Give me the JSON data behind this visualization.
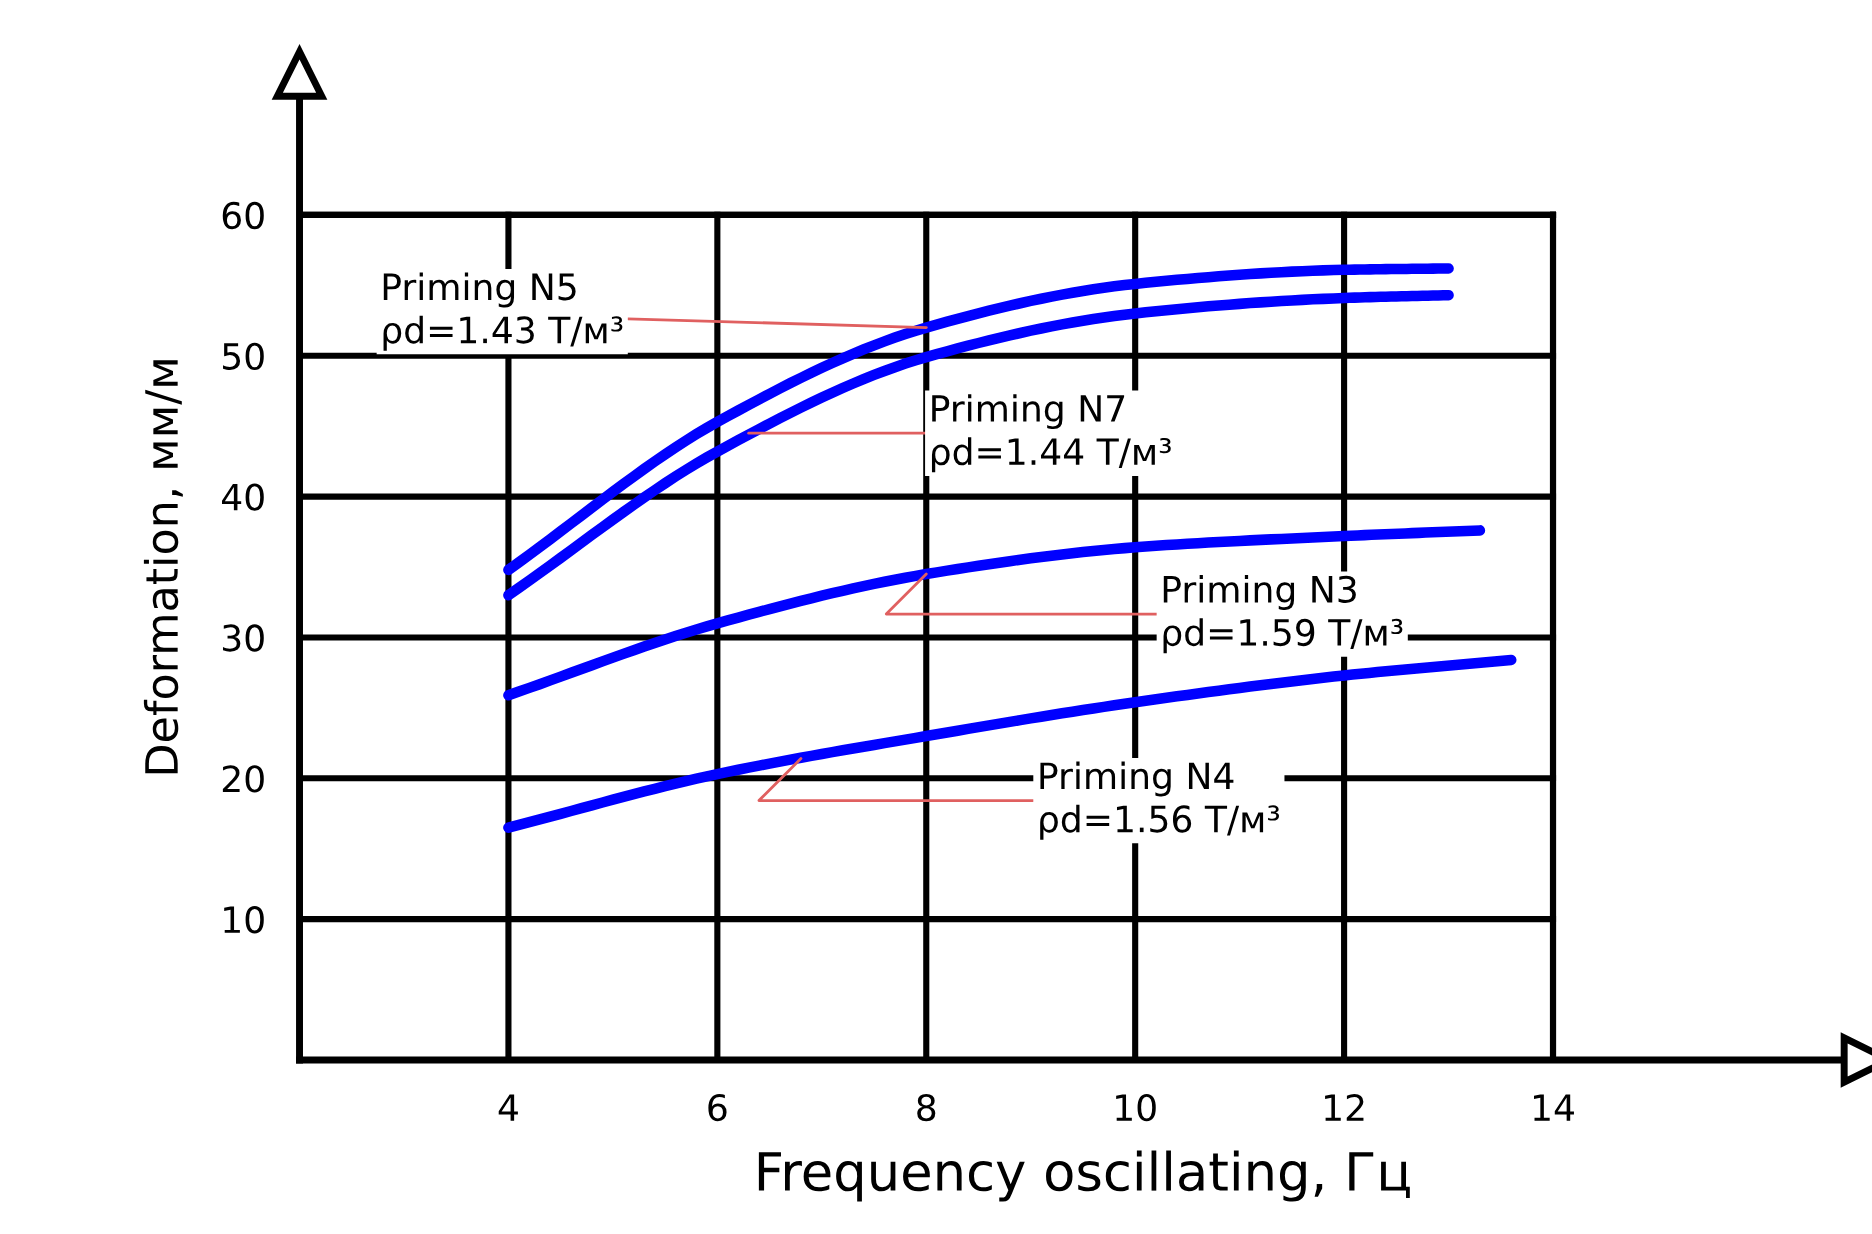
{
  "chart_data": {
    "type": "line",
    "xlabel": "Frequency oscillating, Гц",
    "ylabel": "Deformation, мм/м",
    "series": [
      {
        "color": "#0000ff",
        "x": [
          4,
          6,
          8,
          10,
          12,
          13
        ],
        "values": [
          34.8,
          45.3,
          52.0,
          55.1,
          56.1,
          56.2
        ]
      },
      {
        "color": "#0000ff",
        "x": [
          4,
          6,
          8,
          10,
          12,
          13
        ],
        "values": [
          33.0,
          43.2,
          49.9,
          53.0,
          54.1,
          54.3
        ]
      },
      {
        "color": "#0000ff",
        "x": [
          4,
          6,
          8,
          10,
          12,
          13.3
        ],
        "values": [
          25.9,
          31.0,
          34.5,
          36.4,
          37.2,
          37.6
        ]
      },
      {
        "color": "#0000ff",
        "x": [
          4,
          6,
          8,
          10,
          12,
          13.6
        ],
        "values": [
          16.5,
          20.3,
          23.0,
          25.4,
          27.3,
          28.4
        ]
      }
    ],
    "annotations": [
      {
        "text": "Priming N5\nρd=1.43 T/м³",
        "x": 8,
        "y": 52
      },
      {
        "text": "Priming N7\nρd=1.44 T/м³",
        "x": 6.3,
        "y": 44.5
      },
      {
        "text": "Priming N3\nρd=1.59 T/м³",
        "x": 8,
        "y": 34.5
      },
      {
        "text": "Priming N4\nρd=1.56 T/м³",
        "x": 6.8,
        "y": 21.4
      }
    ],
    "xlim": [
      2,
      17
    ],
    "ylim": [
      0,
      70
    ],
    "xticks": [
      4,
      6,
      8,
      10,
      12,
      14
    ],
    "yticks": [
      10,
      20,
      30,
      40,
      50,
      60
    ],
    "grid": true,
    "marker": "none",
    "line_style": "solid"
  }
}
